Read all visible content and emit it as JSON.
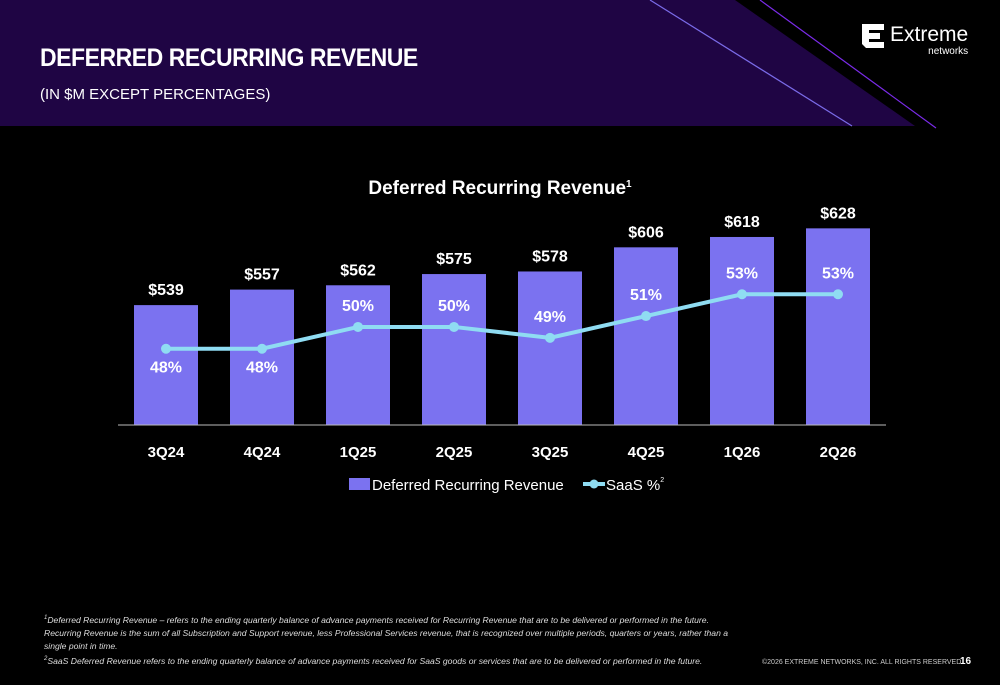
{
  "header": {
    "title": "DEFERRED RECURRING REVENUE",
    "subtitle": "(IN $M EXCEPT PERCENTAGES)",
    "logo_text": "Extreme",
    "logo_sub": "networks",
    "bg_color": "#1f0544"
  },
  "chart_data": {
    "type": "bar",
    "title": "Deferred Recurring Revenue",
    "title_sup": "1",
    "categories": [
      "3Q24",
      "4Q24",
      "1Q25",
      "2Q25",
      "3Q25",
      "4Q25",
      "1Q26",
      "2Q26"
    ],
    "series": [
      {
        "name": "Deferred Recurring Revenue",
        "kind": "bar",
        "color": "#7b72f0",
        "values": [
          539,
          557,
          562,
          575,
          578,
          606,
          618,
          628
        ],
        "labels": [
          "$539",
          "$557",
          "$562",
          "$575",
          "$578",
          "$606",
          "$618",
          "$628"
        ]
      },
      {
        "name": "SaaS %",
        "name_sup": "2",
        "kind": "line",
        "color": "#8fdcf2",
        "values": [
          48,
          48,
          50,
          50,
          49,
          51,
          53,
          53
        ],
        "labels": [
          "48%",
          "48%",
          "50%",
          "50%",
          "49%",
          "51%",
          "53%",
          "53%"
        ]
      }
    ],
    "bar_ylim": [
      400,
      640
    ],
    "line_ylim": [
      41,
      60
    ],
    "grid": false,
    "legend": "bottom"
  },
  "footer": {
    "notes": [
      {
        "sup": "1",
        "text": "Deferred Recurring Revenue – refers to the ending quarterly balance of advance payments received for Recurring Revenue that are to be delivered or performed in the future. Recurring Revenue is the sum of all Subscription and Support revenue, less Professional Services revenue, that is recognized over multiple periods, quarters or years, rather than a single point in time."
      },
      {
        "sup": "2",
        "text": "SaaS Deferred Revenue refers to the ending quarterly balance of advance payments received for SaaS goods or services that are to be delivered or performed in the future."
      }
    ],
    "copyright": "©2026 EXTREME NETWORKS, INC. ALL RIGHTS RESERVED.",
    "page": "16"
  }
}
